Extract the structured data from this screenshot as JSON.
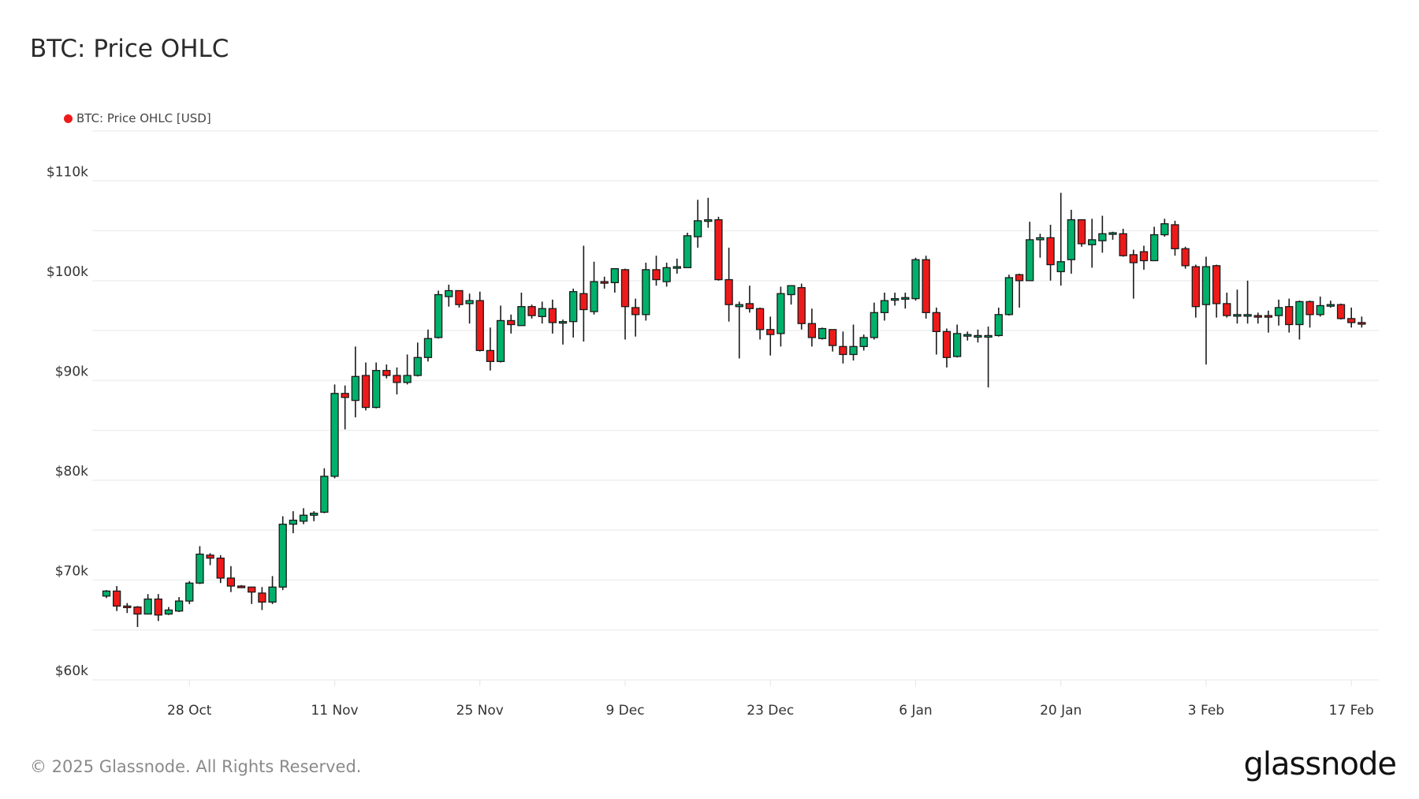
{
  "title": "BTC: Price OHLC",
  "footer": "© 2025 Glassnode. All Rights Reserved.",
  "logo": "glassnode",
  "colors": {
    "up": "#00b06b",
    "down": "#ee1a1a",
    "outline": "#1a1a1a",
    "legend_dot": "#ee1a1a",
    "grid": "#efefef"
  },
  "chart_data": {
    "type": "candlestick",
    "title": "BTC: Price OHLC",
    "legend": [
      {
        "name": "BTC: Price OHLC [USD]",
        "position": "top-left"
      }
    ],
    "ylim": [
      60000,
      115000
    ],
    "grid": true,
    "yticks": [
      {
        "value": 60000,
        "label": "$60k"
      },
      {
        "value": 70000,
        "label": "$70k"
      },
      {
        "value": 80000,
        "label": "$80k"
      },
      {
        "value": 90000,
        "label": "$90k"
      },
      {
        "value": 100000,
        "label": "$100k"
      },
      {
        "value": 110000,
        "label": "$110k"
      }
    ],
    "xticks": [
      {
        "date": "2024-10-28",
        "label": "28 Oct"
      },
      {
        "date": "2024-11-11",
        "label": "11 Nov"
      },
      {
        "date": "2024-11-25",
        "label": "25 Nov"
      },
      {
        "date": "2024-12-09",
        "label": "9 Dec"
      },
      {
        "date": "2024-12-23",
        "label": "23 Dec"
      },
      {
        "date": "2025-01-06",
        "label": "6 Jan"
      },
      {
        "date": "2025-01-20",
        "label": "20 Jan"
      },
      {
        "date": "2025-02-03",
        "label": "3 Feb"
      },
      {
        "date": "2025-02-17",
        "label": "17 Feb"
      }
    ],
    "columns": [
      "date",
      "open",
      "high",
      "low",
      "close"
    ],
    "candles": [
      [
        "2024-10-20",
        68400,
        69000,
        68200,
        68900
      ],
      [
        "2024-10-21",
        68900,
        69400,
        66900,
        67400
      ],
      [
        "2024-10-22",
        67400,
        67700,
        66700,
        67300
      ],
      [
        "2024-10-23",
        67300,
        67400,
        65300,
        66600
      ],
      [
        "2024-10-24",
        66600,
        68600,
        66600,
        68100
      ],
      [
        "2024-10-25",
        68100,
        68600,
        65900,
        66500
      ],
      [
        "2024-10-26",
        66600,
        67300,
        66500,
        67000
      ],
      [
        "2024-10-27",
        66900,
        68300,
        66800,
        67900
      ],
      [
        "2024-10-28",
        67900,
        69900,
        67600,
        69700
      ],
      [
        "2024-10-29",
        69700,
        73400,
        69600,
        72600
      ],
      [
        "2024-10-30",
        72500,
        72700,
        71500,
        72200
      ],
      [
        "2024-10-31",
        72200,
        72500,
        69700,
        70200
      ],
      [
        "2024-11-01",
        70200,
        71400,
        68800,
        69400
      ],
      [
        "2024-11-02",
        69400,
        69500,
        69200,
        69300
      ],
      [
        "2024-11-03",
        69300,
        69300,
        67600,
        68800
      ],
      [
        "2024-11-04",
        68700,
        69300,
        67000,
        67800
      ],
      [
        "2024-11-05",
        67800,
        70400,
        67600,
        69300
      ],
      [
        "2024-11-06",
        69300,
        76400,
        69000,
        75600
      ],
      [
        "2024-11-07",
        75600,
        76900,
        74700,
        76000
      ],
      [
        "2024-11-08",
        75900,
        77200,
        75600,
        76500
      ],
      [
        "2024-11-09",
        76500,
        76900,
        75900,
        76700
      ],
      [
        "2024-11-10",
        76800,
        81200,
        76700,
        80400
      ],
      [
        "2024-11-11",
        80400,
        89600,
        80200,
        88700
      ],
      [
        "2024-11-12",
        88700,
        89500,
        85100,
        88300
      ],
      [
        "2024-11-13",
        88000,
        93400,
        86300,
        90400
      ],
      [
        "2024-11-14",
        90500,
        91800,
        87000,
        87300
      ],
      [
        "2024-11-15",
        87300,
        91800,
        87200,
        91000
      ],
      [
        "2024-11-16",
        91000,
        91600,
        90200,
        90500
      ],
      [
        "2024-11-17",
        90500,
        91300,
        88600,
        89800
      ],
      [
        "2024-11-18",
        89800,
        92600,
        89600,
        90500
      ],
      [
        "2024-11-19",
        90500,
        93800,
        90400,
        92300
      ],
      [
        "2024-11-20",
        92300,
        95100,
        91900,
        94200
      ],
      [
        "2024-11-21",
        94300,
        99000,
        94200,
        98600
      ],
      [
        "2024-11-22",
        98400,
        99600,
        97400,
        99000
      ],
      [
        "2024-11-23",
        99000,
        99000,
        97300,
        97600
      ],
      [
        "2024-11-24",
        97700,
        98700,
        95700,
        98000
      ],
      [
        "2024-11-25",
        98000,
        98900,
        92900,
        93000
      ],
      [
        "2024-11-26",
        93000,
        95300,
        91000,
        91900
      ],
      [
        "2024-11-27",
        91900,
        97500,
        91800,
        96000
      ],
      [
        "2024-11-28",
        96000,
        96600,
        94700,
        95600
      ],
      [
        "2024-11-29",
        95500,
        98800,
        95500,
        97400
      ],
      [
        "2024-11-30",
        97400,
        97600,
        96200,
        96500
      ],
      [
        "2024-12-01",
        96400,
        97900,
        95700,
        97200
      ],
      [
        "2024-12-02",
        97200,
        98100,
        94700,
        95800
      ],
      [
        "2024-12-03",
        95800,
        96100,
        93600,
        95900
      ],
      [
        "2024-12-04",
        95900,
        99200,
        94300,
        98900
      ],
      [
        "2024-12-05",
        98700,
        103500,
        93900,
        97100
      ],
      [
        "2024-12-06",
        96900,
        101900,
        96600,
        99900
      ],
      [
        "2024-12-07",
        99900,
        100400,
        99200,
        99800
      ],
      [
        "2024-12-08",
        99800,
        101200,
        98800,
        101200
      ],
      [
        "2024-12-09",
        101100,
        101200,
        94100,
        97400
      ],
      [
        "2024-12-10",
        97300,
        98200,
        94400,
        96600
      ],
      [
        "2024-12-11",
        96600,
        101800,
        96000,
        101100
      ],
      [
        "2024-12-12",
        101100,
        102500,
        99500,
        100100
      ],
      [
        "2024-12-13",
        99900,
        101800,
        99400,
        101300
      ],
      [
        "2024-12-14",
        101400,
        102200,
        100700,
        101400
      ],
      [
        "2024-12-15",
        101300,
        104800,
        101300,
        104500
      ],
      [
        "2024-12-16",
        104400,
        108100,
        103300,
        106000
      ],
      [
        "2024-12-17",
        106000,
        108300,
        105300,
        106100
      ],
      [
        "2024-12-18",
        106100,
        106400,
        100000,
        100100
      ],
      [
        "2024-12-19",
        100100,
        103300,
        95900,
        97600
      ],
      [
        "2024-12-20",
        97400,
        97900,
        92200,
        97600
      ],
      [
        "2024-12-21",
        97700,
        99500,
        96800,
        97200
      ],
      [
        "2024-12-22",
        97200,
        97300,
        94100,
        95100
      ],
      [
        "2024-12-23",
        95100,
        96400,
        92500,
        94600
      ],
      [
        "2024-12-24",
        94700,
        99400,
        93400,
        98700
      ],
      [
        "2024-12-25",
        98600,
        99500,
        97600,
        99500
      ],
      [
        "2024-12-26",
        99300,
        99700,
        95100,
        95700
      ],
      [
        "2024-12-27",
        95700,
        97200,
        93400,
        94300
      ],
      [
        "2024-12-28",
        94200,
        95300,
        94100,
        95200
      ],
      [
        "2024-12-29",
        95100,
        95100,
        92900,
        93500
      ],
      [
        "2024-12-30",
        93400,
        94900,
        91700,
        92600
      ],
      [
        "2024-12-31",
        92600,
        95600,
        92000,
        93400
      ],
      [
        "2025-01-01",
        93400,
        94600,
        93000,
        94300
      ],
      [
        "2025-01-02",
        94300,
        97800,
        94100,
        96800
      ],
      [
        "2025-01-03",
        96800,
        98800,
        96000,
        98000
      ],
      [
        "2025-01-04",
        98100,
        98800,
        97500,
        98200
      ],
      [
        "2025-01-05",
        98200,
        98800,
        97200,
        98300
      ],
      [
        "2025-01-06",
        98200,
        102300,
        98000,
        102100
      ],
      [
        "2025-01-07",
        102100,
        102500,
        96200,
        96800
      ],
      [
        "2025-01-08",
        96800,
        97300,
        92600,
        94900
      ],
      [
        "2025-01-09",
        94900,
        95200,
        91300,
        92300
      ],
      [
        "2025-01-10",
        92400,
        95600,
        92300,
        94700
      ],
      [
        "2025-01-11",
        94600,
        94900,
        94000,
        94600
      ],
      [
        "2025-01-12",
        94500,
        95100,
        93800,
        94500
      ],
      [
        "2025-01-13",
        94500,
        95400,
        89300,
        94500
      ],
      [
        "2025-01-14",
        94500,
        97300,
        94400,
        96600
      ],
      [
        "2025-01-15",
        96600,
        100600,
        96500,
        100300
      ],
      [
        "2025-01-16",
        100600,
        100700,
        97300,
        100000
      ],
      [
        "2025-01-17",
        100000,
        105900,
        100000,
        104100
      ],
      [
        "2025-01-18",
        104100,
        104700,
        102300,
        104300
      ],
      [
        "2025-01-19",
        104300,
        105600,
        100000,
        101600
      ],
      [
        "2025-01-20",
        100900,
        108800,
        99500,
        101900
      ],
      [
        "2025-01-21",
        102100,
        107100,
        100700,
        106100
      ],
      [
        "2025-01-22",
        106100,
        106100,
        103400,
        103700
      ],
      [
        "2025-01-23",
        103600,
        106200,
        101300,
        104100
      ],
      [
        "2025-01-24",
        104000,
        106500,
        102800,
        104700
      ],
      [
        "2025-01-25",
        104700,
        104900,
        104100,
        104800
      ],
      [
        "2025-01-26",
        104700,
        105200,
        102400,
        102500
      ],
      [
        "2025-01-27",
        102600,
        103100,
        98200,
        101800
      ],
      [
        "2025-01-28",
        102900,
        103500,
        101100,
        102000
      ],
      [
        "2025-01-29",
        102000,
        105400,
        102000,
        104600
      ],
      [
        "2025-01-30",
        104600,
        106200,
        104400,
        105700
      ],
      [
        "2025-01-31",
        105600,
        106000,
        102500,
        103200
      ],
      [
        "2025-02-01",
        103200,
        103400,
        101200,
        101500
      ],
      [
        "2025-02-02",
        101400,
        101600,
        96300,
        97400
      ],
      [
        "2025-02-03",
        97600,
        102400,
        91600,
        101400
      ],
      [
        "2025-02-04",
        101500,
        101600,
        96300,
        97700
      ],
      [
        "2025-02-05",
        97700,
        98800,
        96300,
        96500
      ],
      [
        "2025-02-06",
        96600,
        99100,
        95700,
        96600
      ],
      [
        "2025-02-07",
        96500,
        100000,
        95700,
        96600
      ],
      [
        "2025-02-08",
        96500,
        96800,
        95700,
        96400
      ],
      [
        "2025-02-09",
        96500,
        97000,
        94800,
        96400
      ],
      [
        "2025-02-10",
        96500,
        98100,
        95500,
        97300
      ],
      [
        "2025-02-11",
        97400,
        98200,
        94800,
        95600
      ],
      [
        "2025-02-12",
        95600,
        98000,
        94100,
        97900
      ],
      [
        "2025-02-13",
        97900,
        98000,
        95300,
        96600
      ],
      [
        "2025-02-14",
        96600,
        98400,
        96400,
        97500
      ],
      [
        "2025-02-15",
        97500,
        98000,
        97300,
        97600
      ],
      [
        "2025-02-16",
        97600,
        97700,
        96100,
        96200
      ],
      [
        "2025-02-17",
        96200,
        97300,
        95300,
        95800
      ],
      [
        "2025-02-18",
        95800,
        96400,
        95300,
        95700
      ]
    ]
  }
}
